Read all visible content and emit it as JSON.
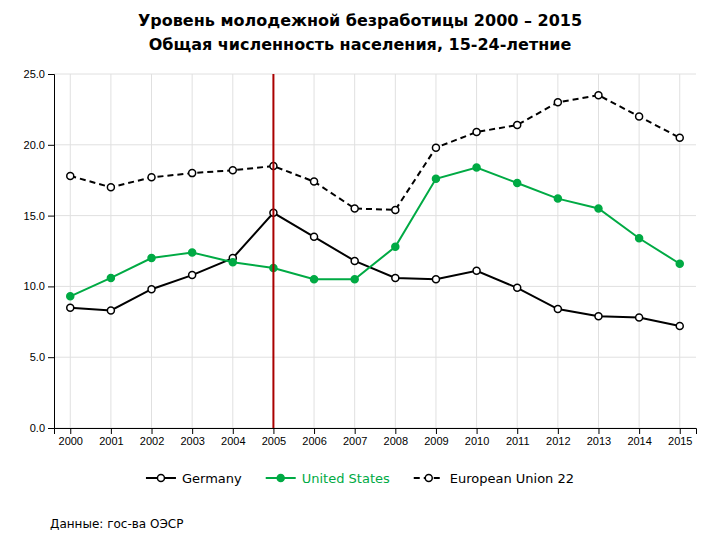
{
  "chart_data": {
    "type": "line",
    "title": "Уровень молодежной безработицы 2000 – 2015",
    "subtitle": "Общая численность населения, 15-24-летние",
    "x": [
      2000,
      2001,
      2002,
      2003,
      2004,
      2005,
      2006,
      2007,
      2008,
      2009,
      2010,
      2011,
      2012,
      2013,
      2014,
      2015
    ],
    "series": [
      {
        "name": "Germany",
        "color": "#000000",
        "marker": "circle-open",
        "line_style": "solid",
        "values": [
          8.5,
          8.3,
          9.8,
          10.8,
          12.0,
          15.2,
          13.5,
          11.8,
          10.6,
          10.5,
          11.1,
          9.9,
          8.4,
          7.9,
          7.8,
          7.2
        ]
      },
      {
        "name": "United States",
        "color": "#00aa44",
        "marker": "circle",
        "line_style": "solid",
        "values": [
          9.3,
          10.6,
          12.0,
          12.4,
          11.7,
          11.3,
          10.5,
          10.5,
          12.8,
          17.6,
          18.4,
          17.3,
          16.2,
          15.5,
          13.4,
          11.6
        ]
      },
      {
        "name": "European Union 22",
        "color": "#000000",
        "marker": "circle-open",
        "line_style": "dashed",
        "values": [
          17.8,
          17.0,
          17.7,
          18.0,
          18.2,
          18.5,
          17.4,
          15.5,
          15.4,
          19.8,
          20.9,
          21.4,
          23.0,
          23.5,
          22.0,
          20.5
        ]
      }
    ],
    "xlim": [
      1999.6,
      2015.4
    ],
    "xticks": [
      2000,
      2001,
      2002,
      2003,
      2004,
      2005,
      2006,
      2007,
      2008,
      2009,
      2010,
      2011,
      2012,
      2013,
      2014,
      2015
    ],
    "ylim": [
      0.0,
      25.0
    ],
    "yticks": [
      {
        "value": 0.0,
        "label": "0.0"
      },
      {
        "value": 5.0,
        "label": "5.0"
      },
      {
        "value": 10.0,
        "label": "10.0"
      },
      {
        "value": 15.0,
        "label": "15.0"
      },
      {
        "value": 20.0,
        "label": "20.0"
      },
      {
        "value": 25.0,
        "label": "25.0"
      }
    ],
    "grid": true,
    "legend": "bottom",
    "annotations": [
      {
        "type": "vline",
        "x": 2005,
        "color": "#aa0000"
      },
      {
        "type": "text",
        "text": "Данные: гос-ва ОЭСР"
      }
    ]
  }
}
